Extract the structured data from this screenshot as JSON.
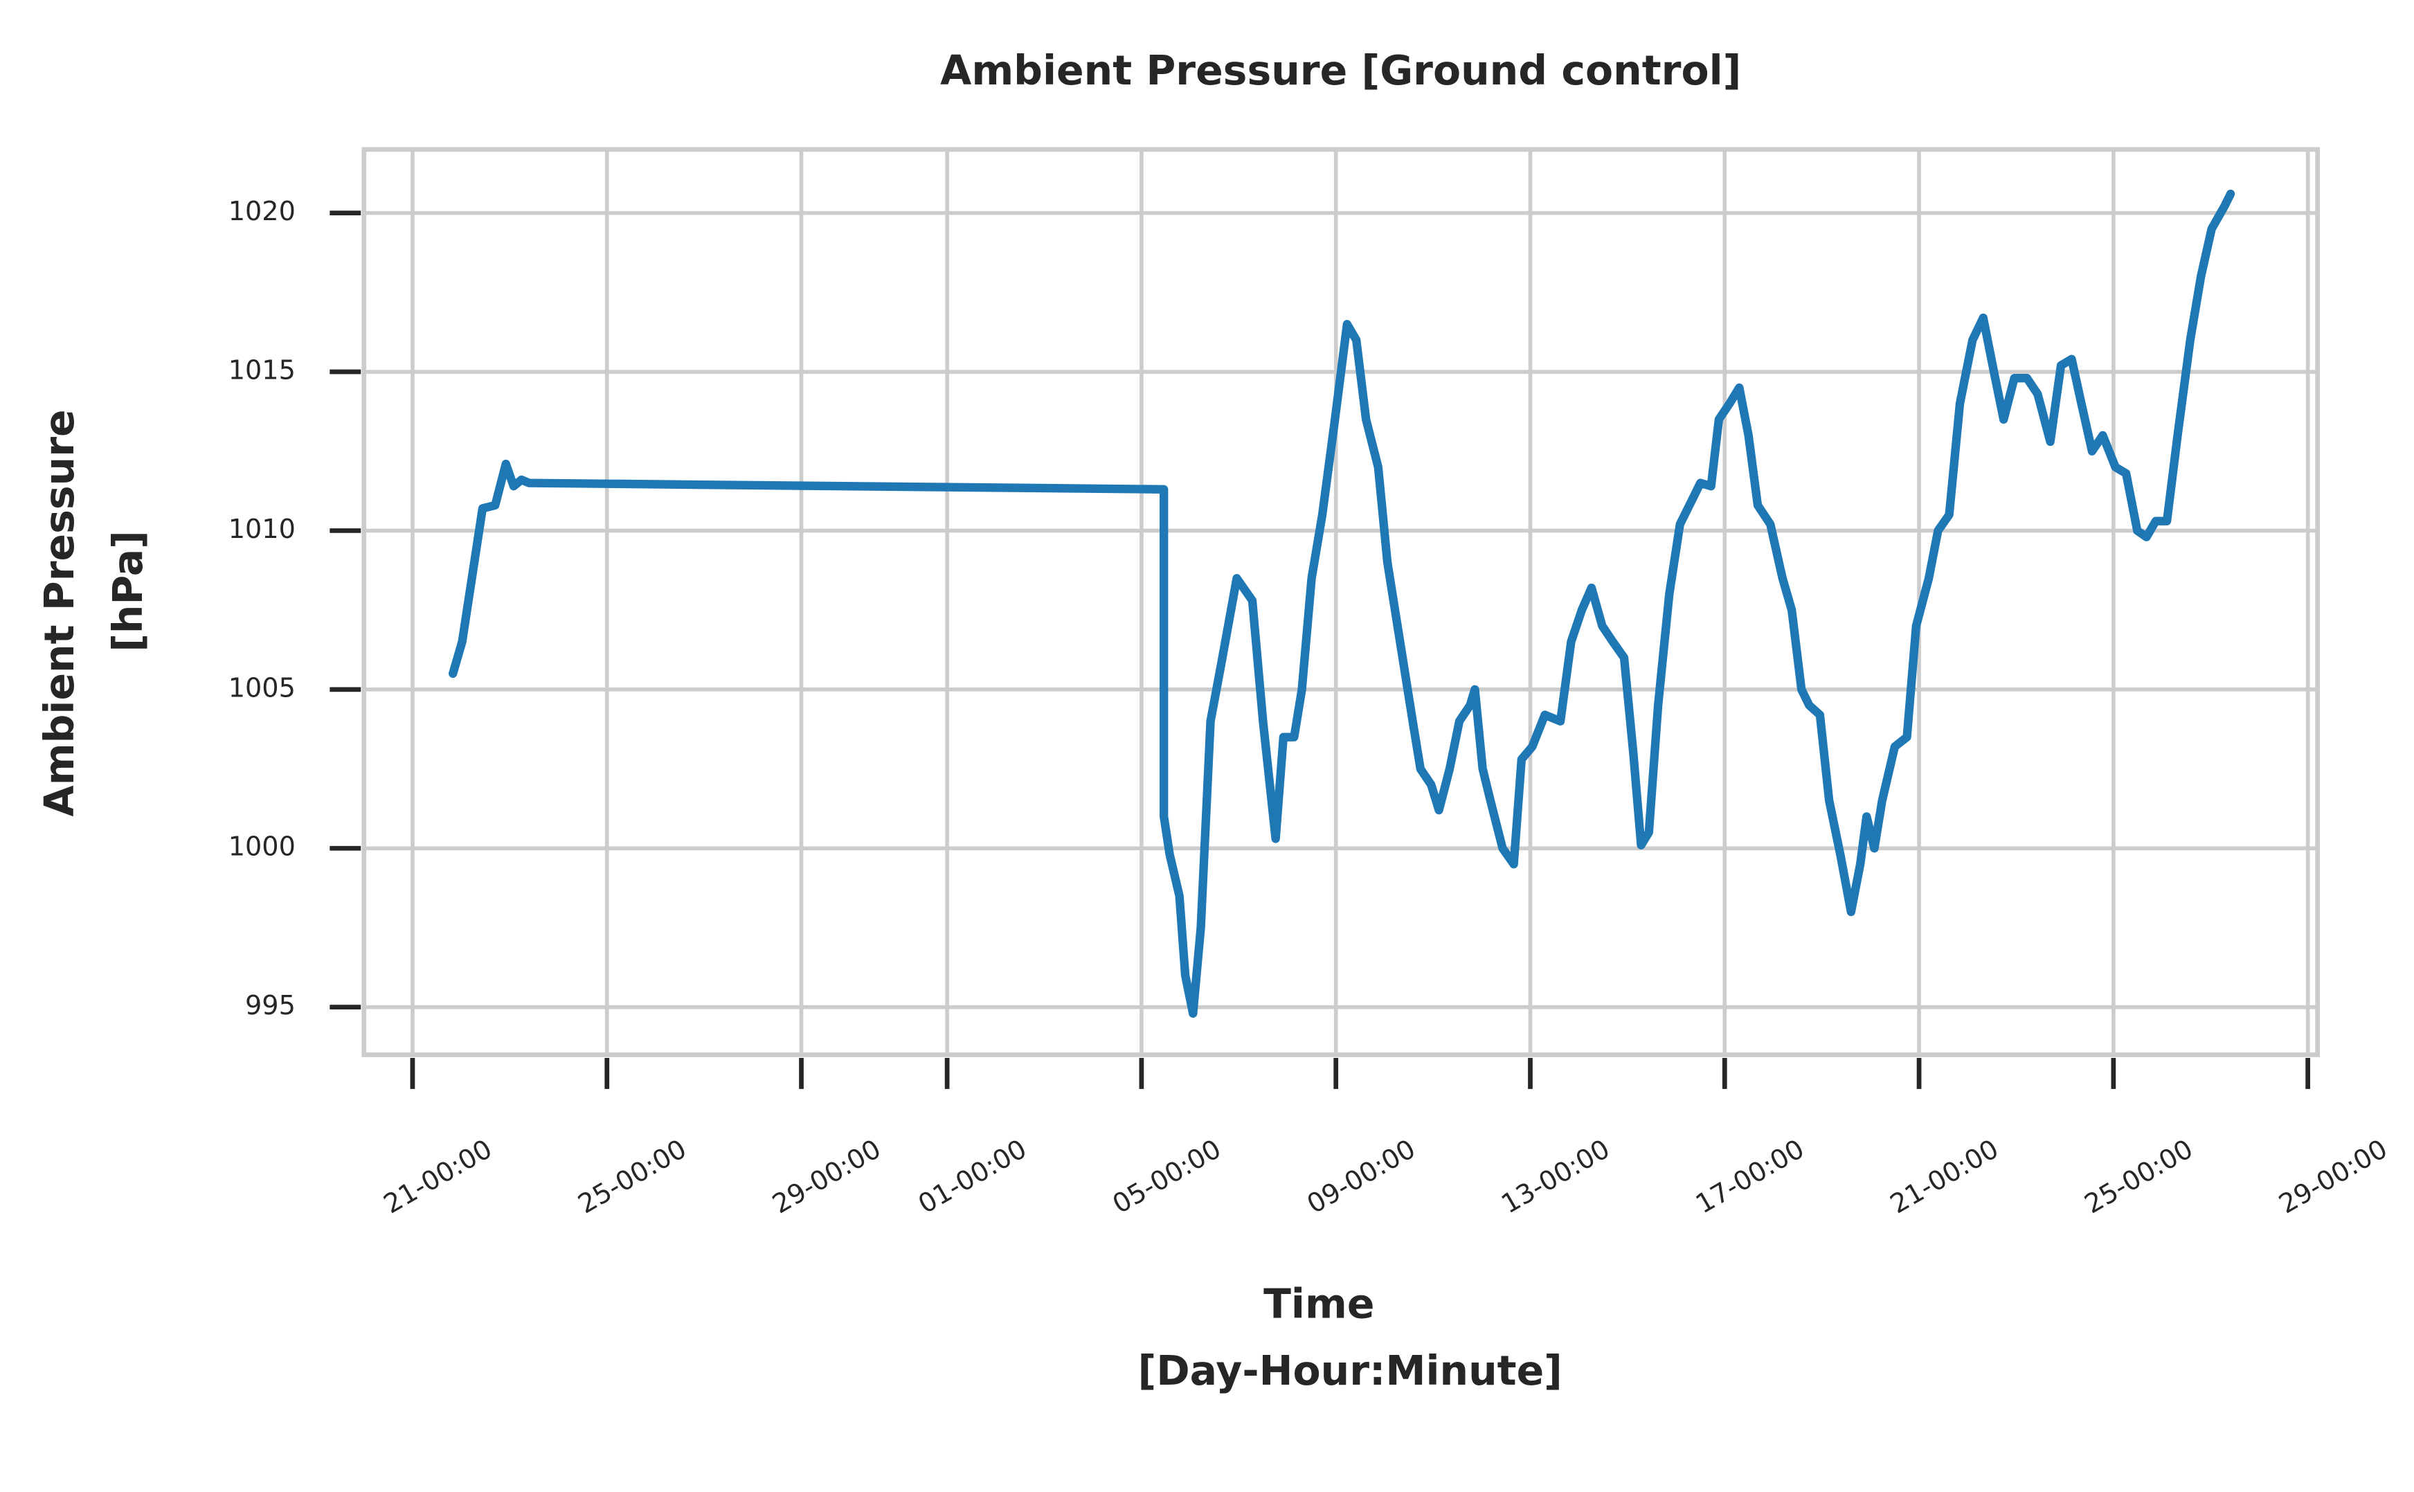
{
  "chart_data": {
    "type": "line",
    "title": "Ambient Pressure [Ground control]",
    "x_label": [
      "Time",
      "[Day-Hour:Minute]"
    ],
    "y_label": [
      "Ambient Pressure",
      "[hPa]"
    ],
    "x": [
      0.83,
      1.02,
      1.22,
      1.44,
      1.7,
      1.92,
      2.08,
      2.24,
      2.4,
      15.46,
      15.46,
      15.58,
      15.78,
      15.9,
      16.06,
      16.22,
      16.42,
      16.64,
      16.96,
      17.28,
      17.5,
      17.76,
      17.92,
      18.14,
      18.3,
      18.5,
      18.72,
      18.98,
      19.23,
      19.42,
      19.62,
      19.87,
      20.06,
      20.32,
      20.58,
      20.74,
      20.96,
      21.12,
      21.34,
      21.54,
      21.76,
      21.86,
      22.02,
      22.18,
      22.43,
      22.66,
      22.82,
      23.04,
      23.3,
      23.62,
      23.84,
      24.06,
      24.26,
      24.48,
      24.7,
      24.93,
      25.12,
      25.28,
      25.44,
      25.63,
      25.86,
      26.08,
      26.34,
      26.5,
      26.72,
      26.88,
      27.1,
      27.3,
      27.49,
      27.68,
      27.94,
      28.19,
      28.38,
      28.58,
      28.74,
      28.96,
      29.15,
      29.38,
      29.6,
      29.79,
      29.92,
      30.08,
      30.24,
      30.5,
      30.75,
      30.94,
      31.2,
      31.39,
      31.62,
      31.84,
      32.1,
      32.32,
      32.54,
      32.74,
      32.96,
      33.22,
      33.44,
      33.7,
      33.92,
      34.14,
      34.34,
      34.56,
      34.78,
      35.04,
      35.26,
      35.49,
      35.68,
      35.87,
      36.1,
      36.32,
      36.58,
      36.8,
      37.02,
      37.28,
      37.41
    ],
    "series": [
      {
        "color": "#1f77b4",
        "values": [
          1005.5,
          1006.5,
          1008.5,
          1010.7,
          1010.8,
          1012.1,
          1011.4,
          1011.6,
          1011.5,
          1011.3,
          1001,
          999.8,
          998.5,
          996,
          994.8,
          997.5,
          1004,
          1005.8,
          1008.5,
          1007.8,
          1004,
          1000.3,
          1003.5,
          1003.5,
          1005,
          1008.5,
          1010.5,
          1013.5,
          1016.5,
          1016,
          1013.5,
          1012,
          1009,
          1006.5,
          1004,
          1002.5,
          1002,
          1001.2,
          1002.5,
          1004,
          1004.5,
          1005,
          1002.5,
          1001.5,
          1000,
          999.5,
          1002.8,
          1003.2,
          1004.2,
          1004,
          1006.5,
          1007.5,
          1008.2,
          1007,
          1006.5,
          1006,
          1003,
          1000.1,
          1000.5,
          1004.5,
          1008,
          1010.2,
          1011,
          1011.5,
          1011.4,
          1013.5,
          1014,
          1014.5,
          1013,
          1010.8,
          1010.2,
          1008.5,
          1007.5,
          1005,
          1004.5,
          1004.2,
          1001.5,
          999.8,
          998,
          999.5,
          1001,
          1000,
          1001.5,
          1003.2,
          1003.5,
          1007,
          1008.5,
          1010,
          1010.5,
          1014,
          1016,
          1016.7,
          1015,
          1013.5,
          1014.8,
          1014.8,
          1014.3,
          1012.8,
          1015.2,
          1015.4,
          1014,
          1012.5,
          1013,
          1012,
          1011.8,
          1010,
          1009.8,
          1010.3,
          1010.3,
          1013,
          1016,
          1018,
          1019.5,
          1020.2,
          1020.6
        ]
      }
    ],
    "xlim": [
      -1,
      39.2
    ],
    "xticks": [
      {
        "value": 0,
        "label": "21-00:00"
      },
      {
        "value": 4,
        "label": "25-00:00"
      },
      {
        "value": 8,
        "label": "29-00:00"
      },
      {
        "value": 11,
        "label": "01-00:00"
      },
      {
        "value": 15,
        "label": "05-00:00"
      },
      {
        "value": 19,
        "label": "09-00:00"
      },
      {
        "value": 23,
        "label": "13-00:00"
      },
      {
        "value": 27,
        "label": "17-00:00"
      },
      {
        "value": 31,
        "label": "21-00:00"
      },
      {
        "value": 35,
        "label": "25-00:00"
      },
      {
        "value": 39,
        "label": "29-00:00"
      }
    ],
    "ylim": [
      993.5,
      1022
    ],
    "yticks": [
      995,
      1000,
      1005,
      1010,
      1015,
      1020
    ],
    "grid": true
  }
}
